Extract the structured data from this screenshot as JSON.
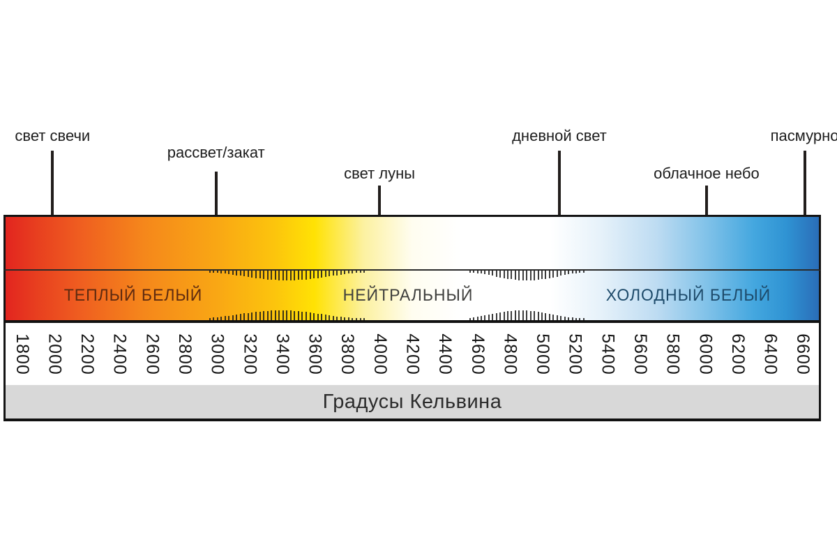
{
  "chart_data": {
    "type": "scale",
    "variant": "color-temperature-kelvin",
    "title": "Градусы Кельвина",
    "axis": {
      "min": 1800,
      "max": 6600,
      "step": 200,
      "tick_labels": [
        "1800",
        "2000",
        "2200",
        "2400",
        "2600",
        "2800",
        "3000",
        "3200",
        "3400",
        "3600",
        "3800",
        "4000",
        "4200",
        "4400",
        "4600",
        "4800",
        "5000",
        "5200",
        "5400",
        "5600",
        "5800",
        "6000",
        "6200",
        "6400",
        "6600"
      ]
    },
    "zones": [
      {
        "label": "ТЕПЛЫЙ БЕЛЫЙ",
        "color": "#5e2a10",
        "center_pct": 15.7
      },
      {
        "label": "НЕЙТРАЛЬНЫЙ",
        "color": "#3f3f3d",
        "center_pct": 49.5
      },
      {
        "label": "ХОЛОДНЫЙ БЕЛЫЙ",
        "color": "#1d4a6a",
        "center_pct": 84.0
      }
    ],
    "transition_hatches": [
      {
        "from_kelvin": 2950,
        "to_kelvin": 3900
      },
      {
        "from_kelvin": 4550,
        "to_kelvin": 5250
      }
    ],
    "markers": [
      {
        "label": "свет свечи",
        "kelvin": 2000,
        "tier": "high"
      },
      {
        "label": "рассвет/закат",
        "kelvin": 3000,
        "tier": "mid"
      },
      {
        "label": "свет луны",
        "kelvin": 4000,
        "tier": "low"
      },
      {
        "label": "дневной свет",
        "kelvin": 5100,
        "tier": "high"
      },
      {
        "label": "облачное небо",
        "kelvin": 6000,
        "tier": "low"
      },
      {
        "label": "пасмурно",
        "kelvin": 6600,
        "tier": "high"
      }
    ],
    "gradient_stops": [
      {
        "pos": 0,
        "color": "#e2251f"
      },
      {
        "pos": 4,
        "color": "#e8401f"
      },
      {
        "pos": 9,
        "color": "#ef5d20"
      },
      {
        "pos": 17,
        "color": "#f5871b"
      },
      {
        "pos": 26,
        "color": "#f9a714"
      },
      {
        "pos": 33,
        "color": "#fcc40d"
      },
      {
        "pos": 38,
        "color": "#ffe204"
      },
      {
        "pos": 44,
        "color": "#fcf1a0"
      },
      {
        "pos": 50,
        "color": "#fffdf0"
      },
      {
        "pos": 56,
        "color": "#ffffff"
      },
      {
        "pos": 67,
        "color": "#ffffff"
      },
      {
        "pos": 73,
        "color": "#e7f2fa"
      },
      {
        "pos": 80,
        "color": "#bedcf2"
      },
      {
        "pos": 86,
        "color": "#83c3e9"
      },
      {
        "pos": 92,
        "color": "#44a7df"
      },
      {
        "pos": 96,
        "color": "#2f93d3"
      },
      {
        "pos": 100,
        "color": "#2a6db8"
      }
    ]
  }
}
